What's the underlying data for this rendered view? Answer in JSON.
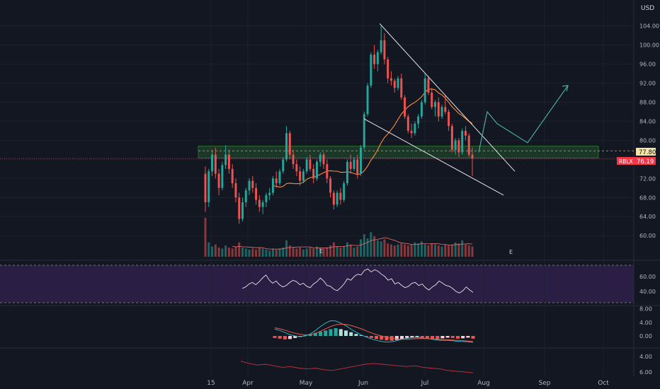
{
  "chart_data": {
    "type": "candlestick",
    "currency_label": "USD",
    "ticker": "RBLX",
    "last_price_label": "76.19",
    "level_price_label": "77.80",
    "price_axis": {
      "ylim": [
        55,
        106
      ],
      "ticks": [
        "104.00",
        "100.00",
        "96.00",
        "92.00",
        "88.00",
        "84.00",
        "80.00",
        "76.00",
        "72.00",
        "68.00",
        "64.00",
        "60.00"
      ]
    },
    "x_axis": {
      "labels": [
        "15",
        "Apr",
        "May",
        "Jun",
        "Jul",
        "Aug",
        "Sep",
        "Oct"
      ]
    },
    "earnings_marker": "E",
    "candles": [
      {
        "o": 73.0,
        "h": 74.5,
        "l": 65.0,
        "c": 67.0
      },
      {
        "o": 67.0,
        "h": 74.0,
        "l": 66.0,
        "c": 73.5
      },
      {
        "o": 73.5,
        "h": 78.0,
        "l": 72.5,
        "c": 77.0
      },
      {
        "o": 77.0,
        "h": 78.5,
        "l": 72.0,
        "c": 73.0
      },
      {
        "o": 73.0,
        "h": 74.0,
        "l": 68.5,
        "c": 70.0
      },
      {
        "o": 70.0,
        "h": 75.5,
        "l": 69.5,
        "c": 74.8
      },
      {
        "o": 74.8,
        "h": 79.0,
        "l": 74.0,
        "c": 77.0
      },
      {
        "o": 77.0,
        "h": 78.0,
        "l": 73.0,
        "c": 74.0
      },
      {
        "o": 74.0,
        "h": 75.0,
        "l": 70.0,
        "c": 71.0
      },
      {
        "o": 71.0,
        "h": 72.0,
        "l": 67.0,
        "c": 68.0
      },
      {
        "o": 68.0,
        "h": 69.0,
        "l": 62.5,
        "c": 63.5
      },
      {
        "o": 63.5,
        "h": 68.0,
        "l": 63.0,
        "c": 67.0
      },
      {
        "o": 67.0,
        "h": 70.0,
        "l": 66.0,
        "c": 69.5
      },
      {
        "o": 69.5,
        "h": 72.0,
        "l": 68.5,
        "c": 71.5
      },
      {
        "o": 71.5,
        "h": 72.5,
        "l": 69.0,
        "c": 70.0
      },
      {
        "o": 70.0,
        "h": 71.0,
        "l": 66.5,
        "c": 67.5
      },
      {
        "o": 67.5,
        "h": 68.5,
        "l": 65.0,
        "c": 66.0
      },
      {
        "o": 66.0,
        "h": 67.5,
        "l": 64.5,
        "c": 67.0
      },
      {
        "o": 67.0,
        "h": 69.0,
        "l": 66.0,
        "c": 68.5
      },
      {
        "o": 68.5,
        "h": 70.0,
        "l": 67.5,
        "c": 69.0
      },
      {
        "o": 69.0,
        "h": 72.5,
        "l": 68.5,
        "c": 72.0
      },
      {
        "o": 72.0,
        "h": 73.5,
        "l": 70.0,
        "c": 71.0
      },
      {
        "o": 71.0,
        "h": 74.0,
        "l": 70.5,
        "c": 73.5
      },
      {
        "o": 73.5,
        "h": 76.5,
        "l": 73.0,
        "c": 76.0
      },
      {
        "o": 76.0,
        "h": 83.0,
        "l": 75.5,
        "c": 81.5
      },
      {
        "o": 81.5,
        "h": 82.0,
        "l": 76.0,
        "c": 77.0
      },
      {
        "o": 77.0,
        "h": 78.0,
        "l": 74.0,
        "c": 75.0
      },
      {
        "o": 75.0,
        "h": 76.0,
        "l": 72.5,
        "c": 73.5
      },
      {
        "o": 73.5,
        "h": 74.5,
        "l": 70.5,
        "c": 71.5
      },
      {
        "o": 71.5,
        "h": 74.0,
        "l": 71.0,
        "c": 73.5
      },
      {
        "o": 73.5,
        "h": 76.5,
        "l": 73.0,
        "c": 76.0
      },
      {
        "o": 76.0,
        "h": 77.0,
        "l": 73.5,
        "c": 74.0
      },
      {
        "o": 74.0,
        "h": 75.0,
        "l": 71.0,
        "c": 72.0
      },
      {
        "o": 72.0,
        "h": 76.0,
        "l": 71.5,
        "c": 75.5
      },
      {
        "o": 75.5,
        "h": 77.5,
        "l": 74.5,
        "c": 77.0
      },
      {
        "o": 77.0,
        "h": 77.5,
        "l": 74.0,
        "c": 75.0
      },
      {
        "o": 75.0,
        "h": 76.0,
        "l": 71.0,
        "c": 72.0
      },
      {
        "o": 72.0,
        "h": 72.5,
        "l": 68.0,
        "c": 69.0
      },
      {
        "o": 69.0,
        "h": 69.5,
        "l": 65.5,
        "c": 66.5
      },
      {
        "o": 66.5,
        "h": 69.5,
        "l": 66.0,
        "c": 69.0
      },
      {
        "o": 69.0,
        "h": 70.0,
        "l": 66.5,
        "c": 67.5
      },
      {
        "o": 67.5,
        "h": 71.5,
        "l": 67.0,
        "c": 71.0
      },
      {
        "o": 71.0,
        "h": 76.0,
        "l": 70.5,
        "c": 75.5
      },
      {
        "o": 75.5,
        "h": 77.0,
        "l": 73.0,
        "c": 74.0
      },
      {
        "o": 74.0,
        "h": 76.5,
        "l": 73.5,
        "c": 76.0
      },
      {
        "o": 76.0,
        "h": 77.0,
        "l": 72.0,
        "c": 73.0
      },
      {
        "o": 73.0,
        "h": 79.0,
        "l": 72.5,
        "c": 78.5
      },
      {
        "o": 78.5,
        "h": 86.0,
        "l": 78.0,
        "c": 85.5
      },
      {
        "o": 85.5,
        "h": 92.0,
        "l": 85.0,
        "c": 91.5
      },
      {
        "o": 91.5,
        "h": 98.5,
        "l": 91.0,
        "c": 98.0
      },
      {
        "o": 98.0,
        "h": 100.0,
        "l": 95.0,
        "c": 96.0
      },
      {
        "o": 96.0,
        "h": 99.0,
        "l": 94.5,
        "c": 98.5
      },
      {
        "o": 98.5,
        "h": 104.0,
        "l": 98.0,
        "c": 101.0
      },
      {
        "o": 101.0,
        "h": 102.5,
        "l": 96.0,
        "c": 97.0
      },
      {
        "o": 97.0,
        "h": 97.5,
        "l": 92.0,
        "c": 93.0
      },
      {
        "o": 93.0,
        "h": 94.5,
        "l": 91.5,
        "c": 92.5
      },
      {
        "o": 92.5,
        "h": 93.0,
        "l": 90.0,
        "c": 91.0
      },
      {
        "o": 91.0,
        "h": 93.5,
        "l": 90.5,
        "c": 93.0
      },
      {
        "o": 93.0,
        "h": 94.0,
        "l": 88.5,
        "c": 89.0
      },
      {
        "o": 89.0,
        "h": 89.5,
        "l": 84.5,
        "c": 85.0
      },
      {
        "o": 85.0,
        "h": 85.5,
        "l": 81.5,
        "c": 82.0
      },
      {
        "o": 82.0,
        "h": 83.5,
        "l": 80.5,
        "c": 81.5
      },
      {
        "o": 81.5,
        "h": 84.0,
        "l": 81.0,
        "c": 83.5
      },
      {
        "o": 83.5,
        "h": 85.5,
        "l": 82.5,
        "c": 85.0
      },
      {
        "o": 85.0,
        "h": 88.5,
        "l": 84.5,
        "c": 88.0
      },
      {
        "o": 88.0,
        "h": 94.0,
        "l": 87.5,
        "c": 93.0
      },
      {
        "o": 93.0,
        "h": 93.5,
        "l": 89.5,
        "c": 90.0
      },
      {
        "o": 90.0,
        "h": 91.0,
        "l": 86.5,
        "c": 87.0
      },
      {
        "o": 87.0,
        "h": 88.5,
        "l": 85.0,
        "c": 88.0
      },
      {
        "o": 88.0,
        "h": 89.0,
        "l": 84.0,
        "c": 85.0
      },
      {
        "o": 85.0,
        "h": 87.5,
        "l": 84.5,
        "c": 87.0
      },
      {
        "o": 87.0,
        "h": 89.5,
        "l": 85.5,
        "c": 86.0
      },
      {
        "o": 86.0,
        "h": 86.5,
        "l": 82.0,
        "c": 83.0
      },
      {
        "o": 83.0,
        "h": 83.5,
        "l": 77.5,
        "c": 78.0
      },
      {
        "o": 78.0,
        "h": 80.5,
        "l": 77.0,
        "c": 80.0
      },
      {
        "o": 80.0,
        "h": 80.5,
        "l": 76.5,
        "c": 77.5
      },
      {
        "o": 77.5,
        "h": 82.5,
        "l": 77.0,
        "c": 82.0
      },
      {
        "o": 82.0,
        "h": 83.0,
        "l": 80.0,
        "c": 81.0
      },
      {
        "o": 81.0,
        "h": 81.5,
        "l": 76.5,
        "c": 77.0
      },
      {
        "o": 77.0,
        "h": 78.5,
        "l": 72.5,
        "c": 76.2
      }
    ],
    "volume": [
      38,
      14,
      10,
      12,
      9,
      8,
      11,
      9,
      8,
      10,
      14,
      9,
      8,
      7,
      8,
      7,
      9,
      8,
      7,
      6,
      8,
      7,
      8,
      9,
      16,
      11,
      9,
      8,
      9,
      7,
      8,
      9,
      8,
      10,
      9,
      8,
      9,
      11,
      14,
      10,
      9,
      10,
      14,
      12,
      9,
      10,
      17,
      22,
      18,
      24,
      20,
      16,
      15,
      17,
      13,
      12,
      11,
      12,
      13,
      12,
      11,
      12,
      14,
      13,
      15,
      12,
      11,
      13,
      12,
      11,
      10,
      12,
      11,
      12,
      14,
      13,
      16,
      12,
      11,
      10,
      14
    ],
    "annotations": {
      "pattern": "falling wedge",
      "zone": [
        76.3,
        78.8
      ],
      "projection": [
        [
          688,
          86
        ],
        [
          702,
          83.5
        ],
        [
          745,
          79.5
        ],
        [
          802,
          91.5
        ]
      ]
    },
    "rsi": {
      "ticks": [
        "60.00",
        "40.00"
      ],
      "values": [
        44,
        46,
        50,
        52,
        49,
        53,
        58,
        62,
        55,
        51,
        54,
        49,
        46,
        48,
        52,
        55,
        53,
        49,
        51,
        47,
        45,
        50,
        53,
        58,
        54,
        48,
        47,
        43,
        41,
        45,
        50,
        57,
        55,
        60,
        63,
        62,
        68,
        70,
        66,
        69,
        67,
        63,
        60,
        55,
        57,
        50,
        52,
        48,
        45,
        47,
        51,
        52,
        48,
        50,
        45,
        42,
        46,
        49,
        54,
        51,
        48,
        47,
        44,
        40,
        38,
        41,
        46,
        42,
        39
      ]
    },
    "macd": {
      "ticks": [
        "8.00",
        "4.00",
        "0.00"
      ],
      "hist": [
        -0.6,
        -0.8,
        -1.0,
        -0.9,
        -0.6,
        -0.3,
        0.2,
        0.5,
        0.9,
        1.3,
        1.6,
        2.0,
        2.3,
        2.0,
        1.6,
        1.1,
        0.6,
        0.2,
        -0.3,
        -0.6,
        -0.9,
        -1.1,
        -1.3,
        -1.4,
        -1.2,
        -0.9,
        -0.6,
        -0.4,
        -0.3,
        -0.5,
        -0.7,
        -0.8,
        -0.9,
        -0.7,
        -0.5,
        -0.6,
        -0.8,
        -0.7,
        -0.5,
        -0.8
      ],
      "macd_line": [
        2.0,
        1.6,
        1.0,
        0.4,
        0.0,
        -0.2,
        0.0,
        0.6,
        1.6,
        2.8,
        3.8,
        4.5,
        4.4,
        3.8,
        3.0,
        2.0,
        1.1,
        0.3,
        -0.3,
        -0.9,
        -1.3,
        -1.6,
        -1.8,
        -1.7,
        -1.4,
        -1.0,
        -0.7,
        -0.5,
        -0.4,
        -0.6,
        -0.8,
        -1.0,
        -1.2,
        -1.3,
        -1.3,
        -1.4,
        -1.6,
        -1.6,
        -1.7,
        -1.9
      ],
      "signal_line": [
        2.4,
        2.1,
        1.7,
        1.2,
        0.8,
        0.5,
        0.3,
        0.4,
        0.8,
        1.4,
        2.1,
        2.8,
        3.3,
        3.5,
        3.4,
        3.1,
        2.6,
        2.1,
        1.5,
        0.9,
        0.4,
        0.0,
        -0.4,
        -0.7,
        -0.9,
        -1.0,
        -1.0,
        -0.9,
        -0.8,
        -0.8,
        -0.8,
        -0.9,
        -1.0,
        -1.1,
        -1.1,
        -1.2,
        -1.3,
        -1.4,
        -1.5,
        -1.6
      ]
    },
    "bottom_panel": {
      "ticks": [
        "4.00",
        "6.00"
      ],
      "values": [
        4.6,
        4.9,
        5.1,
        5.0,
        5.2,
        5.4,
        5.3,
        5.5,
        5.6,
        5.5,
        5.7,
        5.8,
        5.6,
        5.4,
        5.2,
        5.0,
        4.9,
        5.0,
        5.1,
        5.2,
        5.3,
        5.2,
        5.4,
        5.5,
        5.6,
        5.8,
        5.9,
        6.0,
        6.1
      ]
    }
  }
}
